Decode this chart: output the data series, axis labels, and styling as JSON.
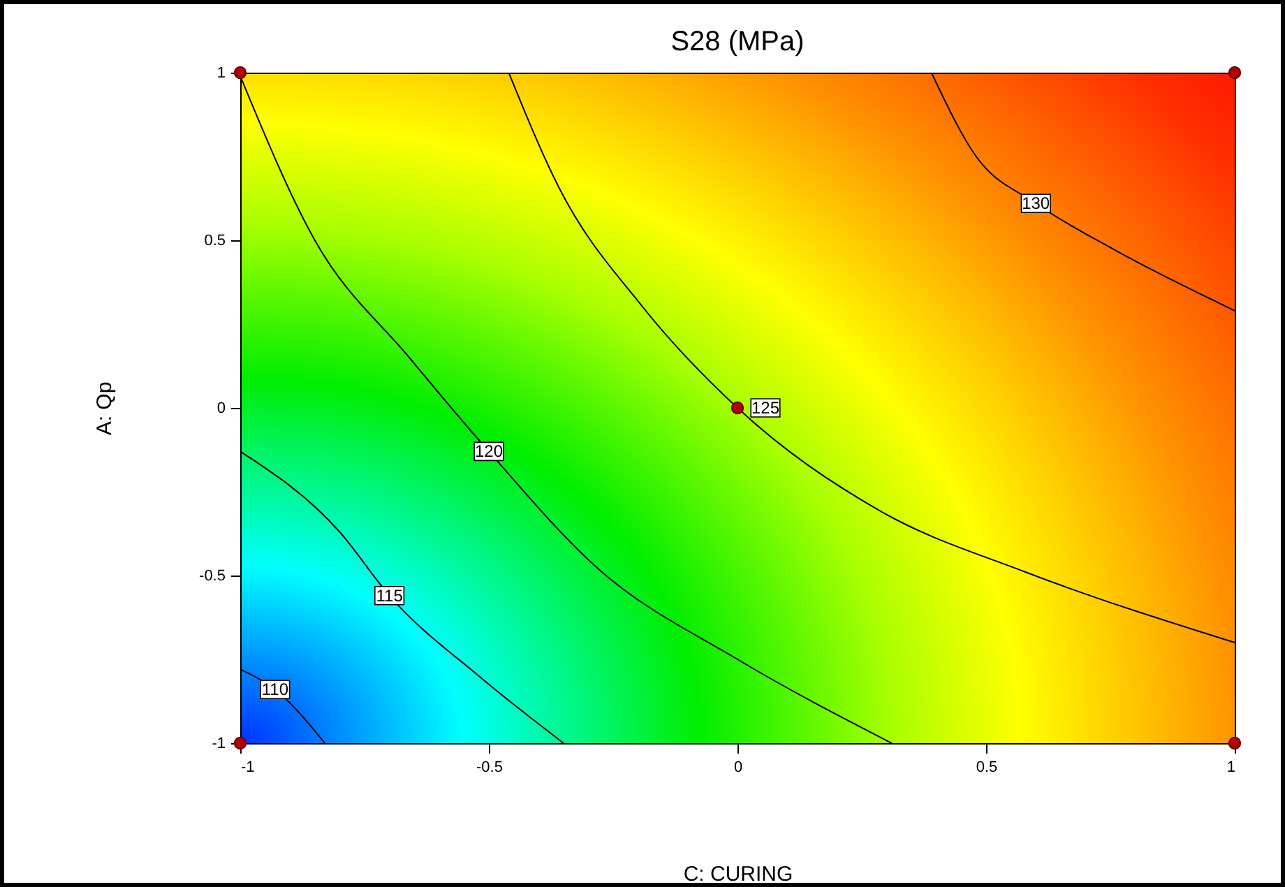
{
  "chart_data": {
    "type": "line",
    "title": "S28 (MPa)",
    "xlabel": "C: CURING",
    "ylabel": "A: Qp",
    "xlim": [
      -1,
      1
    ],
    "ylim": [
      -1,
      1
    ],
    "xticks": [
      -1,
      -0.5,
      0,
      0.5,
      1
    ],
    "yticks": [
      -1,
      -0.5,
      0,
      0.5,
      1
    ],
    "line_style": "solid",
    "series": [
      {
        "name": "110",
        "color": "#000000",
        "x": [
          -1,
          -0.93,
          -0.83
        ],
        "values": [
          -0.78,
          -0.84,
          -1
        ]
      },
      {
        "name": "115",
        "color": "#000000",
        "x": [
          -1,
          -0.8,
          -0.7,
          -0.52,
          -0.35
        ],
        "values": [
          -0.13,
          -0.37,
          -0.56,
          -0.8,
          -1
        ]
      },
      {
        "name": "120",
        "color": "#000000",
        "x": [
          -1,
          -0.85,
          -0.66,
          -0.5,
          -0.28,
          0,
          0.31
        ],
        "values": [
          0.99,
          0.5,
          0.15,
          -0.13,
          -0.48,
          -0.75,
          -1
        ]
      },
      {
        "name": "125",
        "color": "#000000",
        "x": [
          -0.46,
          -0.36,
          -0.19,
          0,
          0.29,
          0.58,
          1
        ],
        "values": [
          1,
          0.66,
          0.3,
          0,
          -0.31,
          -0.49,
          -0.7
        ]
      },
      {
        "name": "130",
        "color": "#000000",
        "x": [
          0.39,
          0.48,
          0.6,
          0.76,
          1
        ],
        "values": [
          1,
          0.75,
          0.61,
          0.47,
          0.29
        ]
      },
      {
        "type": "scatter",
        "color": "#b00000",
        "marker": "circle",
        "x": [
          -1,
          1,
          0,
          -1,
          1
        ],
        "values": [
          1,
          1,
          0,
          -1,
          -1
        ]
      }
    ]
  }
}
